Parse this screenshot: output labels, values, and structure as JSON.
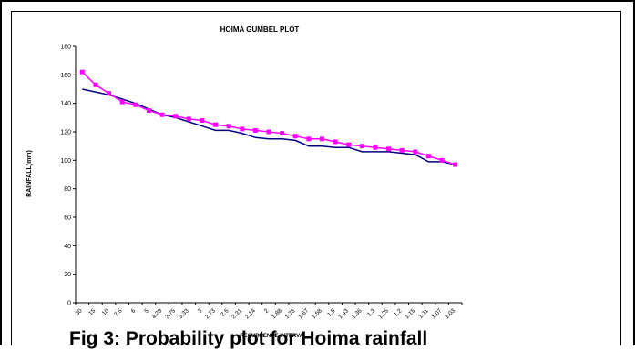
{
  "chart_data": {
    "type": "line",
    "title": "HOIMA GUMBEL  PLOT",
    "xlabel": "RECURRENCE INTERVAL",
    "ylabel": "RAINFALL(mm)",
    "ylim": [
      0,
      180
    ],
    "y_ticks": [
      "0",
      "20",
      "40",
      "60",
      "80",
      "100",
      "120",
      "140",
      "160",
      "180"
    ],
    "categories": [
      "30",
      "15",
      "10",
      "7.5",
      "6",
      "5",
      "4.29",
      "3.75",
      "3.33",
      "3",
      "2.73",
      "2.5",
      "2.31",
      "2.14",
      "2",
      "1.88",
      "1.76",
      "1.67",
      "1.58",
      "1.5",
      "1.43",
      "1.36",
      "1.3",
      "1.25",
      "1.2",
      "1.15",
      "1.11",
      "1.07",
      "1.03"
    ],
    "grid": false,
    "legend": "none",
    "series": [
      {
        "color": "#000080",
        "marker": "none",
        "values": [
          150,
          148,
          146,
          143,
          140,
          136,
          132,
          130,
          127,
          124,
          121,
          121,
          119,
          116,
          115,
          115,
          114,
          110,
          110,
          109,
          109,
          106,
          106,
          106,
          105,
          104,
          99,
          99,
          97
        ]
      },
      {
        "color": "#ff00ff",
        "marker": "square",
        "values": [
          162,
          153,
          147,
          141,
          139,
          135,
          132,
          131,
          129,
          128,
          125,
          124,
          122,
          121,
          120,
          119,
          117,
          115,
          115,
          113,
          111,
          110,
          109,
          108,
          107,
          106,
          103,
          100,
          97
        ]
      }
    ]
  },
  "caption": "Fig 3: Probability plot for Hoima rainfall"
}
